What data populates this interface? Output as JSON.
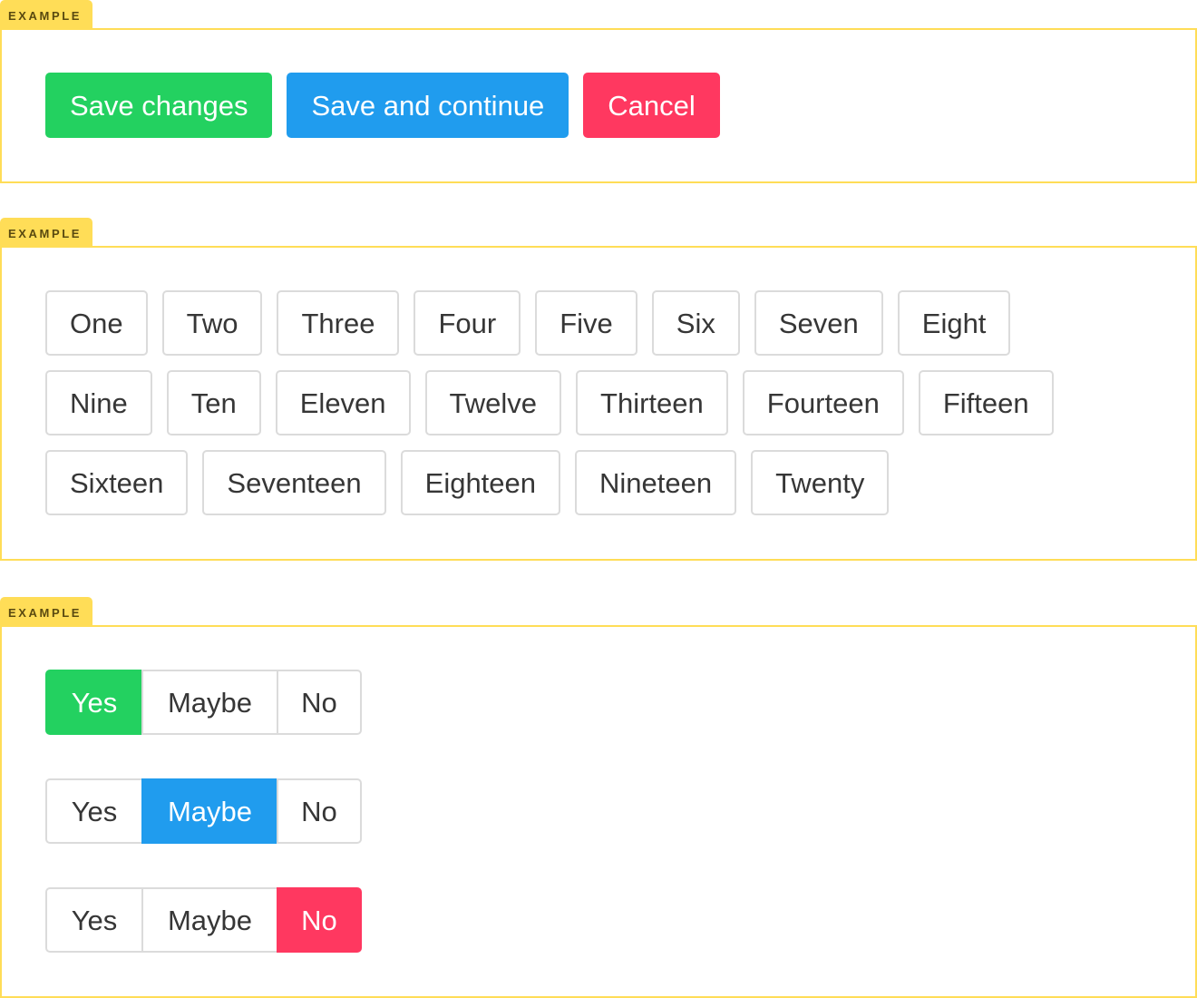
{
  "colors": {
    "success": "#23d160",
    "info": "#209cee",
    "danger": "#ff3860",
    "example_tag": "#ffdd57"
  },
  "example_label": "EXAMPLE",
  "actions": {
    "save": "Save changes",
    "save_continue": "Save and continue",
    "cancel": "Cancel"
  },
  "tags": [
    "One",
    "Two",
    "Three",
    "Four",
    "Five",
    "Six",
    "Seven",
    "Eight",
    "Nine",
    "Ten",
    "Eleven",
    "Twelve",
    "Thirteen",
    "Fourteen",
    "Fifteen",
    "Sixteen",
    "Seventeen",
    "Eighteen",
    "Nineteen",
    "Twenty"
  ],
  "segmented": [
    {
      "options": [
        "Yes",
        "Maybe",
        "No"
      ],
      "selected": "Yes"
    },
    {
      "options": [
        "Yes",
        "Maybe",
        "No"
      ],
      "selected": "Maybe"
    },
    {
      "options": [
        "Yes",
        "Maybe",
        "No"
      ],
      "selected": "No"
    }
  ]
}
